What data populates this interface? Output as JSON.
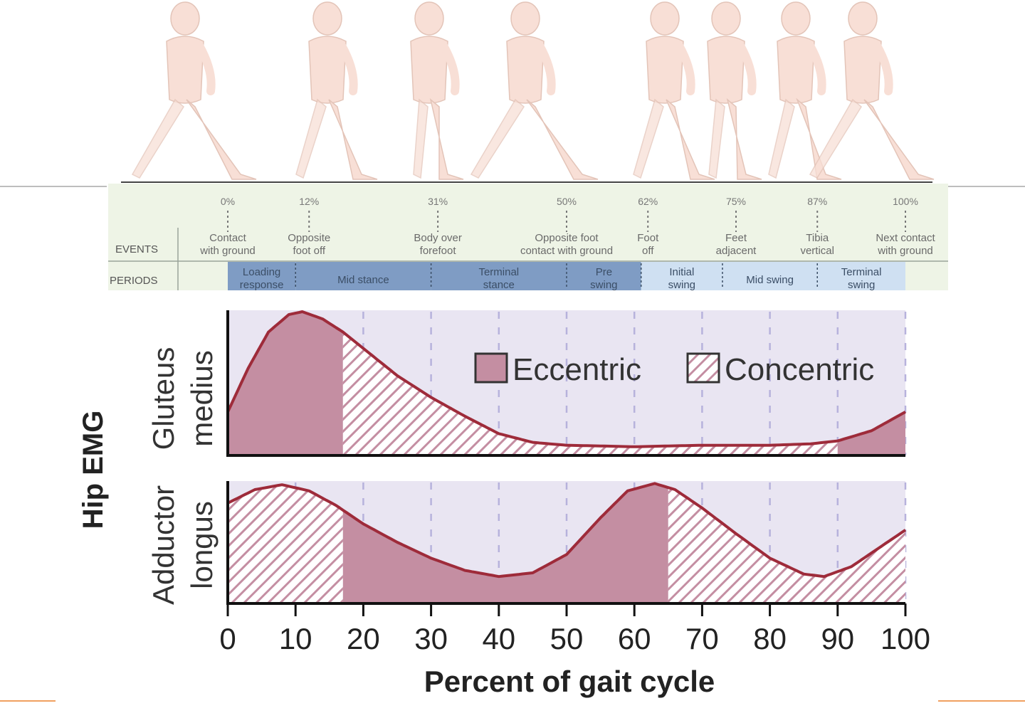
{
  "colors": {
    "eccentric_fill": "#c48ea2",
    "curve_stroke": "#9e2b3a",
    "plot_bg": "#e9e5f2",
    "events_bg": "#eef4e6",
    "stance_bg": "#7f9cc4",
    "swing_bg": "#cfe0f2",
    "figure_fill": "#f8dfd6"
  },
  "events_header": {
    "row_label_events": "EVENTS",
    "row_label_periods": "PERIODS",
    "events": [
      {
        "pct": "0%",
        "at": 0,
        "line1": "Contact",
        "line2": "with ground"
      },
      {
        "pct": "12%",
        "at": 12,
        "line1": "Opposite",
        "line2": "foot off"
      },
      {
        "pct": "31%",
        "at": 31,
        "line1": "Body over",
        "line2": "forefoot"
      },
      {
        "pct": "50%",
        "at": 50,
        "line1": "Opposite foot",
        "line2": "contact with ground"
      },
      {
        "pct": "62%",
        "at": 62,
        "line1": "Foot",
        "line2": "off"
      },
      {
        "pct": "75%",
        "at": 75,
        "line1": "Feet",
        "line2": "adjacent"
      },
      {
        "pct": "87%",
        "at": 87,
        "line1": "Tibia",
        "line2": "vertical"
      },
      {
        "pct": "100%",
        "at": 100,
        "line1": "Next contact",
        "line2": "with ground"
      }
    ],
    "periods": [
      {
        "line1": "Loading",
        "line2": "response",
        "start": 0,
        "end": 10,
        "phase": "stance"
      },
      {
        "line1": "Mid stance",
        "line2": "",
        "start": 10,
        "end": 30,
        "phase": "stance"
      },
      {
        "line1": "Terminal",
        "line2": "stance",
        "start": 30,
        "end": 50,
        "phase": "stance"
      },
      {
        "line1": "Pre",
        "line2": "swing",
        "start": 50,
        "end": 61,
        "phase": "stance"
      },
      {
        "line1": "Initial",
        "line2": "swing",
        "start": 61,
        "end": 73,
        "phase": "swing"
      },
      {
        "line1": "Mid swing",
        "line2": "",
        "start": 73,
        "end": 87,
        "phase": "swing"
      },
      {
        "line1": "Terminal",
        "line2": "swing",
        "start": 87,
        "end": 100,
        "phase": "swing"
      }
    ]
  },
  "chart_data": {
    "type": "area",
    "xlabel": "Percent of gait cycle",
    "ylabel": "Hip EMG",
    "xlim": [
      0,
      100
    ],
    "xticks": [
      "0",
      "10",
      "20",
      "30",
      "40",
      "50",
      "60",
      "70",
      "80",
      "90",
      "100"
    ],
    "grid": true,
    "legend": {
      "placement": "top-right",
      "entries": [
        {
          "label": "Eccentric",
          "pattern": "solid"
        },
        {
          "label": "Concentric",
          "pattern": "hatched"
        }
      ]
    },
    "panels": [
      {
        "name": "Gluteus medius",
        "label_line1": "Gluteus",
        "label_line2": "medius",
        "ylim": [
          0,
          1
        ],
        "x": [
          0,
          3,
          6,
          9,
          11,
          14,
          17,
          21,
          25,
          30,
          35,
          40,
          45,
          50,
          60,
          70,
          80,
          86,
          90,
          95,
          100
        ],
        "y": [
          0.3,
          0.6,
          0.85,
          0.97,
          0.99,
          0.94,
          0.85,
          0.7,
          0.55,
          0.4,
          0.27,
          0.15,
          0.09,
          0.07,
          0.06,
          0.07,
          0.07,
          0.08,
          0.1,
          0.17,
          0.3
        ],
        "segments": [
          {
            "start": 0,
            "end": 17,
            "type": "eccentric"
          },
          {
            "start": 17,
            "end": 90,
            "type": "concentric"
          },
          {
            "start": 90,
            "end": 100,
            "type": "eccentric"
          }
        ]
      },
      {
        "name": "Adductor longus",
        "label_line1": "Adductor",
        "label_line2": "longus",
        "ylim": [
          0,
          1
        ],
        "x": [
          0,
          4,
          8,
          12,
          16,
          20,
          25,
          30,
          35,
          40,
          45,
          50,
          55,
          59,
          63,
          66,
          70,
          75,
          80,
          85,
          88,
          92,
          96,
          100
        ],
        "y": [
          0.82,
          0.93,
          0.97,
          0.92,
          0.8,
          0.65,
          0.5,
          0.37,
          0.27,
          0.22,
          0.25,
          0.4,
          0.7,
          0.92,
          0.98,
          0.93,
          0.78,
          0.57,
          0.37,
          0.24,
          0.22,
          0.3,
          0.45,
          0.6
        ],
        "segments": [
          {
            "start": 0,
            "end": 17,
            "type": "concentric"
          },
          {
            "start": 17,
            "end": 65,
            "type": "eccentric"
          },
          {
            "start": 65,
            "end": 100,
            "type": "concentric"
          }
        ]
      }
    ]
  }
}
